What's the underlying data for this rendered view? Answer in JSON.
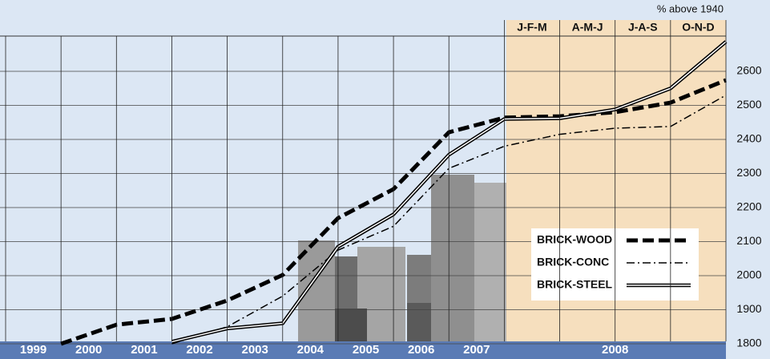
{
  "chart_data": {
    "type": "line",
    "unit_label": "% above 1940",
    "categories": [
      "1999",
      "2000",
      "2001",
      "2002",
      "2003",
      "2004",
      "2005",
      "2006",
      "2007",
      "J-F-M",
      "A-M-J",
      "J-A-S",
      "O-N-D"
    ],
    "group_label": "2008",
    "ylim": [
      1800,
      2700
    ],
    "yticks": [
      1800,
      1900,
      2000,
      2100,
      2200,
      2300,
      2400,
      2500,
      2600
    ],
    "grid": true,
    "legend": "lower right",
    "series": [
      {
        "name": "BRICK-WOOD",
        "color": "#000000",
        "style": "dashed",
        "values": [
          1800,
          1856,
          1873,
          1927,
          2002,
          2169,
          2254,
          2421,
          2464,
          2468,
          2480,
          2508,
          2574
        ]
      },
      {
        "name": "BRICK-CONC",
        "color": "#000000",
        "style": "dash-dot",
        "values": [
          null,
          null,
          1800,
          1850,
          1940,
          2075,
          2145,
          2315,
          2380,
          2415,
          2433,
          2438,
          2530
        ]
      },
      {
        "name": "BRICK-STEEL",
        "color": "#000000",
        "style": "double",
        "values": [
          null,
          null,
          1806,
          1845,
          1860,
          2085,
          2180,
          2355,
          2460,
          2462,
          2488,
          2550,
          2687
        ]
      }
    ]
  }
}
